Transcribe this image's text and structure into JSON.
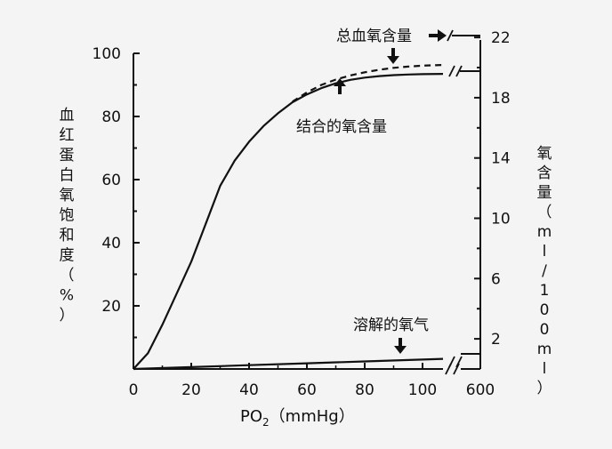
{
  "chart_data": {
    "type": "line",
    "title": "",
    "xlabel": "PO₂（mmHg）",
    "xlabel_parts": {
      "main": "PO",
      "sub": "2",
      "unit": "（mmHg）"
    },
    "ylabel_left": "血红蛋白氧饱和度（%）",
    "ylabel_right": "氧含量（ml/100ml）",
    "x_ticks": [
      "0",
      "20",
      "40",
      "60",
      "80",
      "100",
      "600"
    ],
    "x_tick_values": [
      0,
      20,
      40,
      60,
      80,
      100,
      600
    ],
    "y_ticks_left": [
      "20",
      "40",
      "60",
      "80",
      "100"
    ],
    "y_tick_values_left": [
      20,
      40,
      60,
      80,
      100
    ],
    "y_ticks_right": [
      "2",
      "6",
      "10",
      "14",
      "18",
      "22"
    ],
    "y_tick_values_right": [
      2,
      6,
      10,
      14,
      18,
      22
    ],
    "xlim": [
      0,
      600
    ],
    "ylim_left": [
      0,
      100
    ],
    "ylim_right": [
      0,
      23
    ],
    "axis_break": "between 100 and 600 mmHg",
    "grid": false,
    "series": [
      {
        "name": "结合的氧含量",
        "style": "solid",
        "x": [
          0,
          5,
          10,
          15,
          20,
          25,
          30,
          35,
          40,
          45,
          50,
          55,
          60,
          65,
          70,
          75,
          80,
          85,
          90,
          95,
          100,
          106
        ],
        "y": [
          0,
          5,
          14,
          24,
          34,
          46,
          58,
          66,
          72,
          77,
          81,
          84.5,
          87,
          89,
          90.5,
          91.6,
          92.3,
          92.8,
          93.1,
          93.3,
          93.4,
          93.5
        ]
      },
      {
        "name": "总血氧含量",
        "style": "dashed",
        "x": [
          55,
          60,
          65,
          70,
          75,
          80,
          85,
          90,
          95,
          100,
          106
        ],
        "y": [
          84.7,
          87.6,
          90,
          91.7,
          93,
          94,
          94.8,
          95.4,
          95.8,
          96.1,
          96.3
        ]
      },
      {
        "name": "溶解的氧气",
        "style": "solid",
        "x": [
          0,
          20,
          40,
          60,
          80,
          100,
          106
        ],
        "y": [
          0,
          0.6,
          1.2,
          1.8,
          2.4,
          3.0,
          3.2
        ]
      }
    ],
    "annotations": [
      {
        "text": "总血氧含量",
        "arrow": "down"
      },
      {
        "text": "结合的氧含量",
        "arrow": "up"
      },
      {
        "text": "溶解的氧气",
        "arrow": "down"
      }
    ]
  }
}
